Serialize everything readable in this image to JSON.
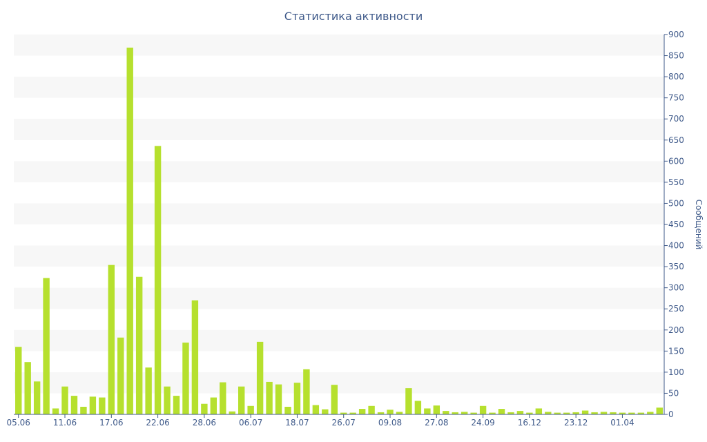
{
  "chart_data": {
    "type": "bar",
    "title": "Статистика активности",
    "xlabel": "",
    "ylabel": "Сообщений",
    "y_axis_side": "right",
    "ylim": [
      0,
      900
    ],
    "y_ticks": [
      0,
      50,
      100,
      150,
      200,
      250,
      300,
      350,
      400,
      450,
      500,
      550,
      600,
      650,
      700,
      750,
      800,
      850,
      900
    ],
    "x_tick_labels": [
      {
        "label": "05.06",
        "index": 0
      },
      {
        "label": "11.06",
        "index": 5
      },
      {
        "label": "17.06",
        "index": 10
      },
      {
        "label": "22.06",
        "index": 15
      },
      {
        "label": "28.06",
        "index": 20
      },
      {
        "label": "06.07",
        "index": 25
      },
      {
        "label": "18.07",
        "index": 30
      },
      {
        "label": "26.07",
        "index": 35
      },
      {
        "label": "09.08",
        "index": 40
      },
      {
        "label": "27.08",
        "index": 45
      },
      {
        "label": "24.09",
        "index": 50
      },
      {
        "label": "16.12",
        "index": 55
      },
      {
        "label": "23.12",
        "index": 60
      },
      {
        "label": "01.04",
        "index": 65
      }
    ],
    "values": [
      160,
      124,
      78,
      323,
      14,
      66,
      44,
      18,
      42,
      40,
      354,
      182,
      869,
      326,
      111,
      636,
      66,
      44,
      170,
      270,
      25,
      40,
      76,
      7,
      66,
      20,
      172,
      77,
      71,
      18,
      75,
      107,
      22,
      12,
      70,
      4,
      4,
      13,
      20,
      5,
      11,
      6,
      62,
      32,
      14,
      21,
      8,
      5,
      6,
      4,
      20,
      4,
      13,
      5,
      8,
      4,
      14,
      6,
      4,
      4,
      5,
      9,
      5,
      6,
      5,
      4,
      4,
      4,
      6,
      16
    ],
    "bar_color": "#b6e02e",
    "band_color": "#f7f7f7",
    "text_color": "#3f5a8a",
    "grid": "alternating-bands"
  }
}
